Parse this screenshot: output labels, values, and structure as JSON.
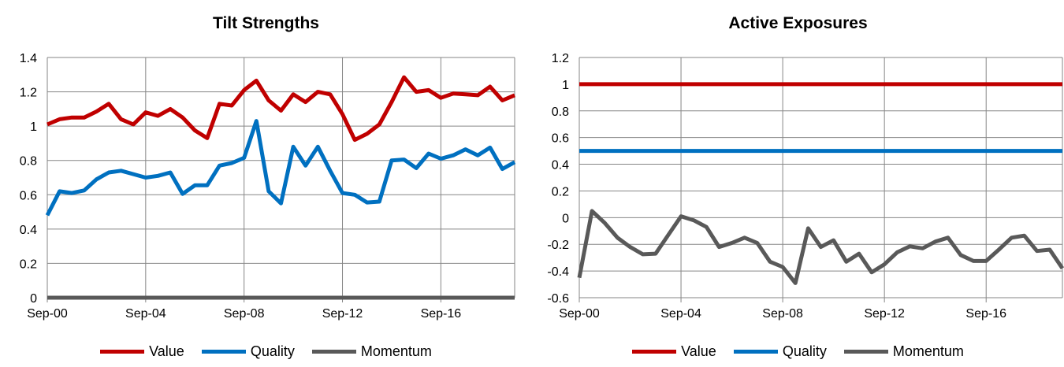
{
  "chart_data": [
    {
      "type": "line",
      "title": "Tilt Strengths",
      "xlabel": "",
      "ylabel": "",
      "ylim": [
        0,
        1.4
      ],
      "yticks": [
        "0",
        "0.2",
        "0.4",
        "0.6",
        "0.8",
        "1",
        "1.2",
        "1.4"
      ],
      "xticks": [
        "Sep-00",
        "Sep-04",
        "Sep-08",
        "Sep-12",
        "Sep-16"
      ],
      "x_start_year": 2000,
      "x_end_year": 2019,
      "grid": true,
      "legend_position": "bottom",
      "series": [
        {
          "name": "Value",
          "color": "#C00000",
          "values": [
            1.01,
            1.04,
            1.05,
            1.05,
            1.085,
            1.13,
            1.04,
            1.01,
            1.08,
            1.06,
            1.1,
            1.05,
            0.975,
            0.93,
            1.13,
            1.12,
            1.21,
            1.265,
            1.15,
            1.09,
            1.185,
            1.14,
            1.2,
            1.185,
            1.07,
            0.92,
            0.955,
            1.01,
            1.14,
            1.285,
            1.2,
            1.21,
            1.165,
            1.19,
            1.185,
            1.18,
            1.23,
            1.15,
            1.18
          ]
        },
        {
          "name": "Quality",
          "color": "#0070C0",
          "values": [
            0.48,
            0.62,
            0.61,
            0.625,
            0.69,
            0.73,
            0.74,
            0.72,
            0.7,
            0.71,
            0.73,
            0.605,
            0.655,
            0.655,
            0.77,
            0.785,
            0.815,
            1.03,
            0.62,
            0.55,
            0.88,
            0.77,
            0.88,
            0.74,
            0.61,
            0.6,
            0.555,
            0.56,
            0.8,
            0.805,
            0.755,
            0.84,
            0.81,
            0.83,
            0.865,
            0.83,
            0.875,
            0.75,
            0.79
          ]
        },
        {
          "name": "Momentum",
          "color": "#595959",
          "values": [
            0,
            0,
            0,
            0,
            0,
            0,
            0,
            0,
            0,
            0,
            0,
            0,
            0,
            0,
            0,
            0,
            0,
            0,
            0,
            0,
            0,
            0,
            0,
            0,
            0,
            0,
            0,
            0,
            0,
            0,
            0,
            0,
            0,
            0,
            0,
            0,
            0,
            0,
            0
          ]
        }
      ]
    },
    {
      "type": "line",
      "title": "Active Exposures",
      "xlabel": "",
      "ylabel": "",
      "ylim": [
        -0.6,
        1.2
      ],
      "yticks": [
        "-0.6",
        "-0.4",
        "-0.2",
        "0",
        "0.2",
        "0.4",
        "0.6",
        "0.8",
        "1",
        "1.2"
      ],
      "xticks": [
        "Sep-00",
        "Sep-04",
        "Sep-08",
        "Sep-12",
        "Sep-16"
      ],
      "x_start_year": 2000,
      "x_end_year": 2019,
      "grid": true,
      "legend_position": "bottom",
      "series": [
        {
          "name": "Value",
          "color": "#C00000",
          "values": [
            1,
            1,
            1,
            1,
            1,
            1,
            1,
            1,
            1,
            1,
            1,
            1,
            1,
            1,
            1,
            1,
            1,
            1,
            1,
            1,
            1,
            1,
            1,
            1,
            1,
            1,
            1,
            1,
            1,
            1,
            1,
            1,
            1,
            1,
            1,
            1,
            1,
            1,
            1
          ]
        },
        {
          "name": "Quality",
          "color": "#0070C0",
          "values": [
            0.5,
            0.5,
            0.5,
            0.5,
            0.5,
            0.5,
            0.5,
            0.5,
            0.5,
            0.5,
            0.5,
            0.5,
            0.5,
            0.5,
            0.5,
            0.5,
            0.5,
            0.5,
            0.5,
            0.5,
            0.5,
            0.5,
            0.5,
            0.5,
            0.5,
            0.5,
            0.5,
            0.5,
            0.5,
            0.5,
            0.5,
            0.5,
            0.5,
            0.5,
            0.5,
            0.5,
            0.5,
            0.5,
            0.5
          ]
        },
        {
          "name": "Momentum",
          "color": "#595959",
          "values": [
            -0.45,
            0.05,
            -0.04,
            -0.15,
            -0.22,
            -0.275,
            -0.27,
            -0.13,
            0.01,
            -0.02,
            -0.07,
            -0.22,
            -0.19,
            -0.15,
            -0.19,
            -0.33,
            -0.37,
            -0.49,
            -0.08,
            -0.22,
            -0.17,
            -0.33,
            -0.27,
            -0.41,
            -0.35,
            -0.26,
            -0.215,
            -0.23,
            -0.18,
            -0.15,
            -0.28,
            -0.325,
            -0.325,
            -0.24,
            -0.15,
            -0.135,
            -0.25,
            -0.24,
            -0.38
          ]
        }
      ]
    }
  ]
}
